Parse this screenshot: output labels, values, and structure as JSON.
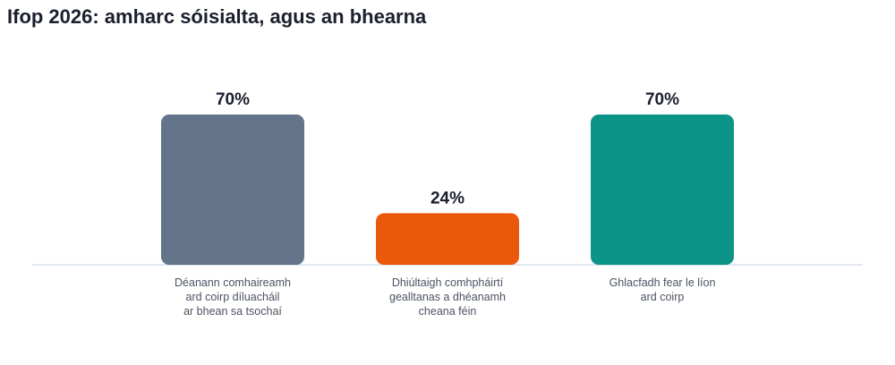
{
  "chart_data": {
    "type": "bar",
    "title": "Ifop 2026: amharc sóisialta, agus an bhearna",
    "categories": [
      [
        "Déanann comhaireamh",
        "ard coirp díluacháil",
        "ar bhean sa tsochaí"
      ],
      [
        "Dhiúltaigh comhpháirtí",
        "gealltanas a dhéanamh",
        "cheana féin"
      ],
      [
        "Ghlacfadh fear le líon",
        "ard coirp"
      ]
    ],
    "values": [
      70,
      24,
      70
    ],
    "value_labels": [
      "70%",
      "24%",
      "70%"
    ],
    "colors": [
      "#64748b",
      "#ea580c",
      "#0d9488"
    ],
    "ylim": [
      0,
      70
    ],
    "grid": false,
    "legend": "none"
  }
}
